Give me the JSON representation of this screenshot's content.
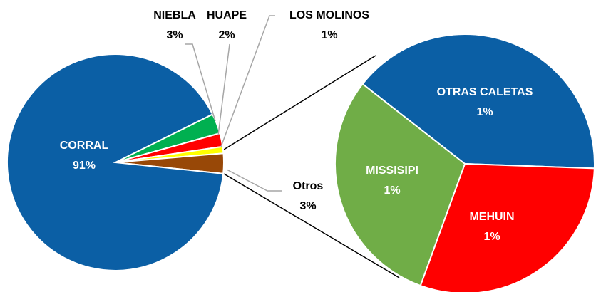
{
  "chart_data": [
    {
      "type": "pie",
      "categories": [
        "NIEBLA",
        "HUAPE",
        "LOS MOLINOS",
        "Otros",
        "CORRAL"
      ],
      "values": [
        3,
        2,
        1,
        3,
        91
      ],
      "value_labels": [
        "3%",
        "2%",
        "1%",
        "3%",
        "91%"
      ],
      "colors": [
        "#00b050",
        "#ff0000",
        "#ffff00",
        "#984807",
        "#0b5fa5"
      ]
    },
    {
      "type": "pie",
      "categories": [
        "OTRAS CALETAS",
        "MEHUIN",
        "MISSISIPI"
      ],
      "values": [
        1.2,
        0.9,
        0.9
      ],
      "value_labels": [
        "1%",
        "1%",
        "1%"
      ],
      "colors": [
        "#0b5fa5",
        "#ff0000",
        "#70ad47"
      ]
    }
  ]
}
